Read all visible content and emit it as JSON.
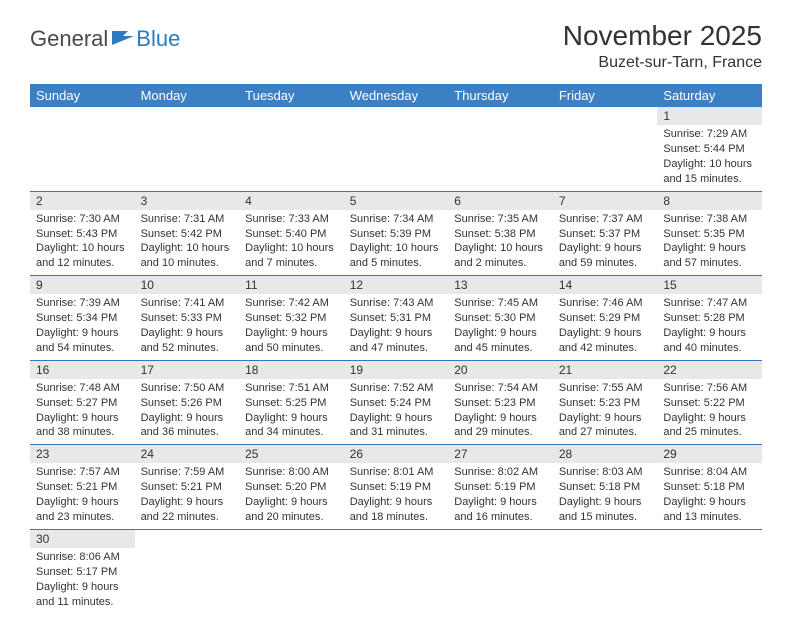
{
  "logo": {
    "part1": "General",
    "part2": "Blue"
  },
  "title": "November 2025",
  "location": "Buzet-sur-Tarn, France",
  "colors": {
    "header_bg": "#3b7fc4",
    "header_text": "#ffffff",
    "daynum_bg": "#e8e8e8",
    "border": "#2b7bbf",
    "text": "#333333",
    "logo_gray": "#4a4a4a",
    "logo_blue": "#2b7bbf"
  },
  "weekdays": [
    "Sunday",
    "Monday",
    "Tuesday",
    "Wednesday",
    "Thursday",
    "Friday",
    "Saturday"
  ],
  "weeks": [
    [
      null,
      null,
      null,
      null,
      null,
      null,
      {
        "n": "1",
        "sunrise": "Sunrise: 7:29 AM",
        "sunset": "Sunset: 5:44 PM",
        "daylight1": "Daylight: 10 hours",
        "daylight2": "and 15 minutes."
      }
    ],
    [
      {
        "n": "2",
        "sunrise": "Sunrise: 7:30 AM",
        "sunset": "Sunset: 5:43 PM",
        "daylight1": "Daylight: 10 hours",
        "daylight2": "and 12 minutes."
      },
      {
        "n": "3",
        "sunrise": "Sunrise: 7:31 AM",
        "sunset": "Sunset: 5:42 PM",
        "daylight1": "Daylight: 10 hours",
        "daylight2": "and 10 minutes."
      },
      {
        "n": "4",
        "sunrise": "Sunrise: 7:33 AM",
        "sunset": "Sunset: 5:40 PM",
        "daylight1": "Daylight: 10 hours",
        "daylight2": "and 7 minutes."
      },
      {
        "n": "5",
        "sunrise": "Sunrise: 7:34 AM",
        "sunset": "Sunset: 5:39 PM",
        "daylight1": "Daylight: 10 hours",
        "daylight2": "and 5 minutes."
      },
      {
        "n": "6",
        "sunrise": "Sunrise: 7:35 AM",
        "sunset": "Sunset: 5:38 PM",
        "daylight1": "Daylight: 10 hours",
        "daylight2": "and 2 minutes."
      },
      {
        "n": "7",
        "sunrise": "Sunrise: 7:37 AM",
        "sunset": "Sunset: 5:37 PM",
        "daylight1": "Daylight: 9 hours",
        "daylight2": "and 59 minutes."
      },
      {
        "n": "8",
        "sunrise": "Sunrise: 7:38 AM",
        "sunset": "Sunset: 5:35 PM",
        "daylight1": "Daylight: 9 hours",
        "daylight2": "and 57 minutes."
      }
    ],
    [
      {
        "n": "9",
        "sunrise": "Sunrise: 7:39 AM",
        "sunset": "Sunset: 5:34 PM",
        "daylight1": "Daylight: 9 hours",
        "daylight2": "and 54 minutes."
      },
      {
        "n": "10",
        "sunrise": "Sunrise: 7:41 AM",
        "sunset": "Sunset: 5:33 PM",
        "daylight1": "Daylight: 9 hours",
        "daylight2": "and 52 minutes."
      },
      {
        "n": "11",
        "sunrise": "Sunrise: 7:42 AM",
        "sunset": "Sunset: 5:32 PM",
        "daylight1": "Daylight: 9 hours",
        "daylight2": "and 50 minutes."
      },
      {
        "n": "12",
        "sunrise": "Sunrise: 7:43 AM",
        "sunset": "Sunset: 5:31 PM",
        "daylight1": "Daylight: 9 hours",
        "daylight2": "and 47 minutes."
      },
      {
        "n": "13",
        "sunrise": "Sunrise: 7:45 AM",
        "sunset": "Sunset: 5:30 PM",
        "daylight1": "Daylight: 9 hours",
        "daylight2": "and 45 minutes."
      },
      {
        "n": "14",
        "sunrise": "Sunrise: 7:46 AM",
        "sunset": "Sunset: 5:29 PM",
        "daylight1": "Daylight: 9 hours",
        "daylight2": "and 42 minutes."
      },
      {
        "n": "15",
        "sunrise": "Sunrise: 7:47 AM",
        "sunset": "Sunset: 5:28 PM",
        "daylight1": "Daylight: 9 hours",
        "daylight2": "and 40 minutes."
      }
    ],
    [
      {
        "n": "16",
        "sunrise": "Sunrise: 7:48 AM",
        "sunset": "Sunset: 5:27 PM",
        "daylight1": "Daylight: 9 hours",
        "daylight2": "and 38 minutes."
      },
      {
        "n": "17",
        "sunrise": "Sunrise: 7:50 AM",
        "sunset": "Sunset: 5:26 PM",
        "daylight1": "Daylight: 9 hours",
        "daylight2": "and 36 minutes."
      },
      {
        "n": "18",
        "sunrise": "Sunrise: 7:51 AM",
        "sunset": "Sunset: 5:25 PM",
        "daylight1": "Daylight: 9 hours",
        "daylight2": "and 34 minutes."
      },
      {
        "n": "19",
        "sunrise": "Sunrise: 7:52 AM",
        "sunset": "Sunset: 5:24 PM",
        "daylight1": "Daylight: 9 hours",
        "daylight2": "and 31 minutes."
      },
      {
        "n": "20",
        "sunrise": "Sunrise: 7:54 AM",
        "sunset": "Sunset: 5:23 PM",
        "daylight1": "Daylight: 9 hours",
        "daylight2": "and 29 minutes."
      },
      {
        "n": "21",
        "sunrise": "Sunrise: 7:55 AM",
        "sunset": "Sunset: 5:23 PM",
        "daylight1": "Daylight: 9 hours",
        "daylight2": "and 27 minutes."
      },
      {
        "n": "22",
        "sunrise": "Sunrise: 7:56 AM",
        "sunset": "Sunset: 5:22 PM",
        "daylight1": "Daylight: 9 hours",
        "daylight2": "and 25 minutes."
      }
    ],
    [
      {
        "n": "23",
        "sunrise": "Sunrise: 7:57 AM",
        "sunset": "Sunset: 5:21 PM",
        "daylight1": "Daylight: 9 hours",
        "daylight2": "and 23 minutes."
      },
      {
        "n": "24",
        "sunrise": "Sunrise: 7:59 AM",
        "sunset": "Sunset: 5:21 PM",
        "daylight1": "Daylight: 9 hours",
        "daylight2": "and 22 minutes."
      },
      {
        "n": "25",
        "sunrise": "Sunrise: 8:00 AM",
        "sunset": "Sunset: 5:20 PM",
        "daylight1": "Daylight: 9 hours",
        "daylight2": "and 20 minutes."
      },
      {
        "n": "26",
        "sunrise": "Sunrise: 8:01 AM",
        "sunset": "Sunset: 5:19 PM",
        "daylight1": "Daylight: 9 hours",
        "daylight2": "and 18 minutes."
      },
      {
        "n": "27",
        "sunrise": "Sunrise: 8:02 AM",
        "sunset": "Sunset: 5:19 PM",
        "daylight1": "Daylight: 9 hours",
        "daylight2": "and 16 minutes."
      },
      {
        "n": "28",
        "sunrise": "Sunrise: 8:03 AM",
        "sunset": "Sunset: 5:18 PM",
        "daylight1": "Daylight: 9 hours",
        "daylight2": "and 15 minutes."
      },
      {
        "n": "29",
        "sunrise": "Sunrise: 8:04 AM",
        "sunset": "Sunset: 5:18 PM",
        "daylight1": "Daylight: 9 hours",
        "daylight2": "and 13 minutes."
      }
    ],
    [
      {
        "n": "30",
        "sunrise": "Sunrise: 8:06 AM",
        "sunset": "Sunset: 5:17 PM",
        "daylight1": "Daylight: 9 hours",
        "daylight2": "and 11 minutes."
      },
      null,
      null,
      null,
      null,
      null,
      null
    ]
  ]
}
